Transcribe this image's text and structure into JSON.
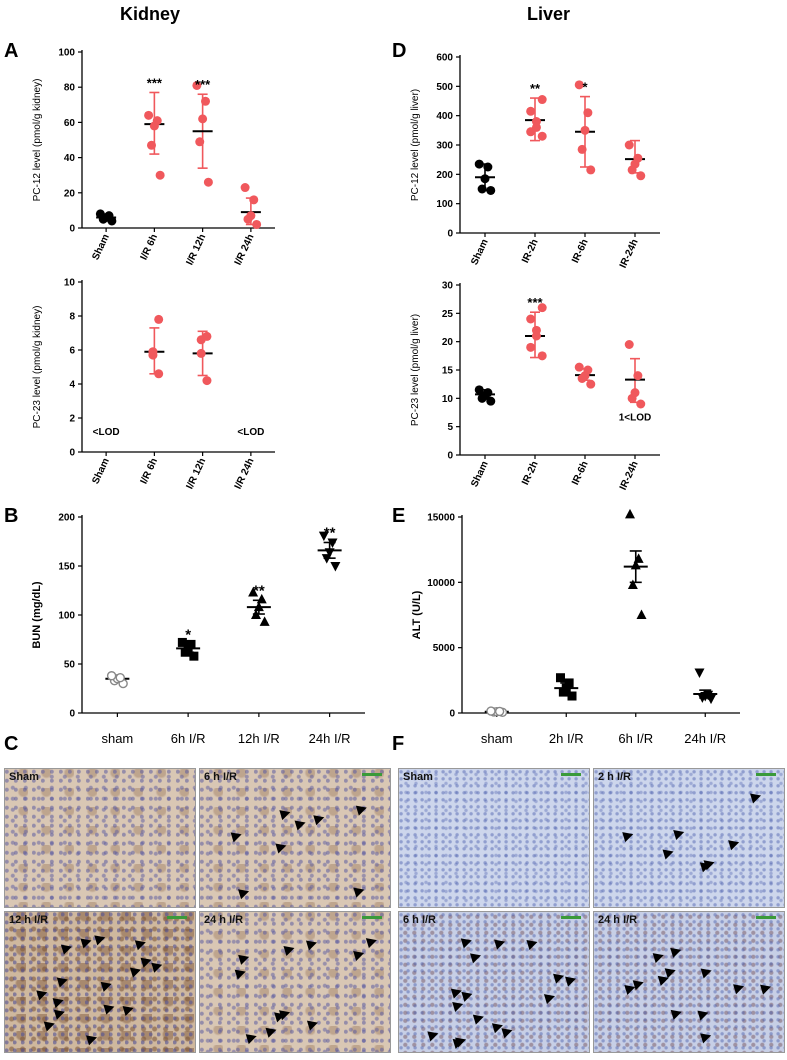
{
  "titles": {
    "kidney": "Kidney",
    "liver": "Liver"
  },
  "panel_letters": {
    "A": "A",
    "B": "B",
    "C": "C",
    "D": "D",
    "E": "E",
    "F": "F"
  },
  "colors": {
    "red": "#f0585c",
    "black": "#000000",
    "grey": "#888888"
  },
  "chart_data": [
    {
      "id": "A-top",
      "type": "scatter",
      "ylabel": "PC-12 level (pmol/g kidney)",
      "ylim": [
        0,
        100
      ],
      "yticks": [
        0,
        20,
        40,
        60,
        80,
        100
      ],
      "categories": [
        "Sham",
        "I/R 6h",
        "I/R 12h",
        "I/R 24h"
      ],
      "groups": [
        {
          "color": "black",
          "points": [
            4,
            5,
            6,
            7,
            8
          ],
          "mean": 6,
          "err": [
            4.5,
            7.5
          ],
          "sig": ""
        },
        {
          "color": "red",
          "points": [
            30,
            47,
            58,
            61,
            64
          ],
          "mean": 59,
          "err": [
            42,
            77
          ],
          "sig": "***"
        },
        {
          "color": "red",
          "points": [
            26,
            49,
            62,
            72,
            81
          ],
          "mean": 55,
          "err": [
            34,
            76
          ],
          "sig": "***"
        },
        {
          "color": "red",
          "points": [
            2,
            5,
            7,
            16,
            23
          ],
          "mean": 9,
          "err": [
            2,
            17
          ],
          "sig": ""
        }
      ]
    },
    {
      "id": "A-bottom",
      "type": "scatter",
      "ylabel": "PC-23 level (pmol/g kidney)",
      "ylim": [
        0,
        10
      ],
      "yticks": [
        0,
        2,
        4,
        6,
        8,
        10
      ],
      "categories": [
        "Sham",
        "I/R 6h",
        "I/R 12h",
        "I/R 24h"
      ],
      "groups": [
        {
          "color": "black",
          "points": [],
          "mean": null,
          "err": null,
          "sig": "",
          "note": "<LOD"
        },
        {
          "color": "red",
          "points": [
            4.6,
            5.7,
            5.9,
            7.8
          ],
          "mean": 5.9,
          "err": [
            4.6,
            7.3
          ],
          "sig": ""
        },
        {
          "color": "red",
          "points": [
            4.2,
            5.8,
            6.6,
            6.8
          ],
          "mean": 5.8,
          "err": [
            4.5,
            7.1
          ],
          "sig": ""
        },
        {
          "color": "red",
          "points": [],
          "mean": null,
          "err": null,
          "sig": "",
          "note": "<LOD"
        }
      ]
    },
    {
      "id": "D-top",
      "type": "scatter",
      "ylabel": "PC-12 level (pmol/g liver)",
      "ylim": [
        0,
        600
      ],
      "yticks": [
        0,
        100,
        200,
        300,
        400,
        500,
        600
      ],
      "categories": [
        "Sham",
        "IR-2h",
        "IR-6h",
        "IR-24h"
      ],
      "groups": [
        {
          "color": "black",
          "points": [
            145,
            150,
            185,
            225,
            235
          ],
          "mean": 190,
          "err": [
            145,
            235
          ],
          "sig": ""
        },
        {
          "color": "red",
          "points": [
            330,
            345,
            360,
            380,
            415,
            455
          ],
          "mean": 385,
          "err": [
            315,
            460
          ],
          "sig": "**"
        },
        {
          "color": "red",
          "points": [
            215,
            285,
            350,
            410,
            505
          ],
          "mean": 345,
          "err": [
            225,
            465
          ],
          "sig": "*"
        },
        {
          "color": "red",
          "points": [
            195,
            215,
            235,
            255,
            300
          ],
          "mean": 252,
          "err": [
            205,
            315
          ],
          "sig": ""
        }
      ]
    },
    {
      "id": "D-bottom",
      "type": "scatter",
      "ylabel": "PC-23 level (pmol/g liver)",
      "ylim": [
        0,
        30
      ],
      "yticks": [
        0,
        5,
        10,
        15,
        20,
        25,
        30
      ],
      "categories": [
        "Sham",
        "IR-2h",
        "IR-6h",
        "IR-24h"
      ],
      "groups": [
        {
          "color": "black",
          "points": [
            9.5,
            10,
            10.5,
            11,
            11.5
          ],
          "mean": 10.7,
          "err": [
            9.9,
            11.5
          ],
          "sig": ""
        },
        {
          "color": "red",
          "points": [
            17.5,
            19,
            21,
            22,
            24,
            26
          ],
          "mean": 21,
          "err": [
            17.2,
            25.2
          ],
          "sig": "***"
        },
        {
          "color": "red",
          "points": [
            12.5,
            13.5,
            14,
            15,
            15.5
          ],
          "mean": 14.1,
          "err": [
            13.2,
            15.2
          ],
          "sig": ""
        },
        {
          "color": "red",
          "points": [
            9,
            10,
            11,
            14,
            19.5
          ],
          "mean": 13.3,
          "err": [
            9.3,
            17
          ],
          "sig": "",
          "note": "1<LOD"
        }
      ]
    },
    {
      "id": "B",
      "type": "scatter",
      "ylabel": "BUN (mg/dL)",
      "ylim": [
        0,
        200
      ],
      "yticks": [
        0,
        50,
        100,
        150,
        200
      ],
      "categories": [
        "sham",
        "6h I/R",
        "12h I/R",
        "24h I/R"
      ],
      "groups": [
        {
          "marker": "circle-open",
          "color": "grey",
          "points": [
            30,
            33,
            35,
            36,
            38
          ],
          "mean": 35,
          "err": [
            32,
            38
          ],
          "sig": ""
        },
        {
          "marker": "square",
          "color": "black",
          "points": [
            58,
            62,
            66,
            70,
            72
          ],
          "mean": 66,
          "err": [
            62,
            70
          ],
          "sig": "*"
        },
        {
          "marker": "triangle-up",
          "color": "black",
          "points": [
            93,
            100,
            108,
            116,
            123
          ],
          "mean": 108,
          "err": [
            101,
            115
          ],
          "sig": "**"
        },
        {
          "marker": "triangle-down",
          "color": "black",
          "points": [
            150,
            158,
            164,
            174,
            181
          ],
          "mean": 166,
          "err": [
            158,
            174
          ],
          "sig": "**"
        }
      ]
    },
    {
      "id": "E",
      "type": "scatter",
      "ylabel": "ALT (U/L)",
      "ylim": [
        0,
        15000
      ],
      "yticks": [
        0,
        5000,
        10000,
        15000
      ],
      "categories": [
        "sham",
        "2h I/R",
        "6h I/R",
        "24h I/R"
      ],
      "groups": [
        {
          "marker": "circle-open",
          "color": "grey",
          "points": [
            50,
            80,
            100,
            120,
            150
          ],
          "mean": 100,
          "err": [
            60,
            140
          ],
          "sig": ""
        },
        {
          "marker": "square",
          "color": "black",
          "points": [
            1300,
            1600,
            1900,
            2300,
            2700
          ],
          "mean": 1900,
          "err": [
            1500,
            2300
          ],
          "sig": ""
        },
        {
          "marker": "triangle-up",
          "color": "black",
          "points": [
            7500,
            9800,
            11300,
            11800,
            15200
          ],
          "mean": 11200,
          "err": [
            10000,
            12400
          ],
          "sig": ""
        },
        {
          "marker": "triangle-down",
          "color": "black",
          "points": [
            1100,
            1200,
            1300,
            1400,
            3100
          ],
          "mean": 1450,
          "err": [
            1150,
            1750
          ],
          "sig": ""
        }
      ]
    }
  ],
  "micrographs": {
    "kidney": [
      {
        "label": "Sham",
        "arrows": 0
      },
      {
        "label": "6 h I/R",
        "arrows": 8
      },
      {
        "label": "12 h I/R",
        "arrows": 16
      },
      {
        "label": "24 h I/R",
        "arrows": 11
      }
    ],
    "liver": [
      {
        "label": "Sham",
        "arrows": 0
      },
      {
        "label": "2 h I/R",
        "arrows": 7
      },
      {
        "label": "6 h I/R",
        "arrows": 16
      },
      {
        "label": "24 h I/R",
        "arrows": 12
      }
    ]
  }
}
